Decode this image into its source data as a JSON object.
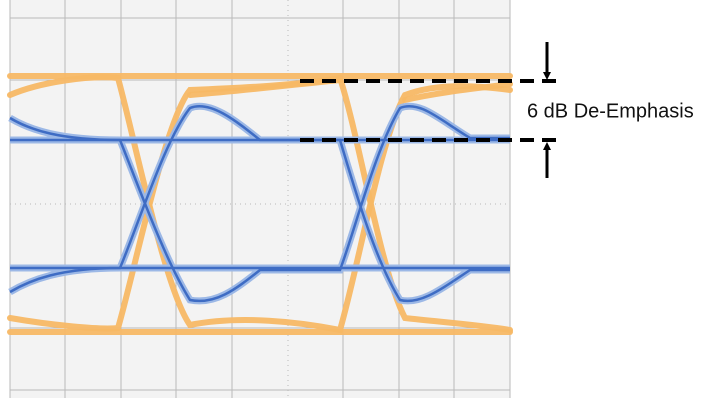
{
  "annotation": {
    "text": "6 dB De-Emphasis"
  }
}
